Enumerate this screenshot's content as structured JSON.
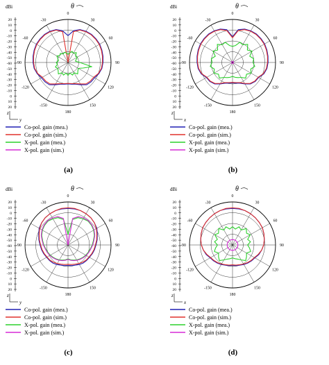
{
  "figure": {
    "theta_symbol": "θ",
    "unit_label": "dBi",
    "radial_ticks": [
      "20",
      "10",
      "0",
      "-10",
      "-20",
      "-30",
      "-40",
      "-50",
      "-60",
      "-50",
      "-40",
      "-30",
      "-20",
      "-10",
      "0",
      "10",
      "20"
    ],
    "angle_labels": [
      {
        "angle": 0,
        "text": "0"
      },
      {
        "angle": 30,
        "text": "30"
      },
      {
        "angle": -30,
        "text": "-30"
      },
      {
        "angle": 60,
        "text": "60"
      },
      {
        "angle": -60,
        "text": "-60"
      },
      {
        "angle": 90,
        "text": "90"
      },
      {
        "angle": -90,
        "text": "-90"
      },
      {
        "angle": 120,
        "text": "120"
      },
      {
        "angle": -120,
        "text": "-120"
      },
      {
        "angle": 150,
        "text": "150"
      },
      {
        "angle": -150,
        "text": "-150"
      },
      {
        "angle": 180,
        "text": "180"
      }
    ],
    "legend": [
      {
        "label": "Co-pol. gain (mea.)",
        "color": "#1f1fb4"
      },
      {
        "label": "Co-pol. gain (sim.)",
        "color": "#e0302b"
      },
      {
        "label": "X-pol. gain (mea.)",
        "color": "#2cd12c"
      },
      {
        "label": "X-pol. gain (sim.)",
        "color": "#d62ad6"
      }
    ]
  },
  "chart_data": [
    {
      "type": "line",
      "subtype": "polar",
      "caption": "(a)",
      "axis_horizontal": "y",
      "axis_vertical": "z",
      "rlim": [
        -60,
        20
      ],
      "theta_deg": [
        0,
        10,
        20,
        30,
        40,
        50,
        60,
        70,
        80,
        90,
        100,
        110,
        120,
        130,
        140,
        150,
        160,
        170,
        180,
        190,
        200,
        210,
        220,
        230,
        240,
        250,
        260,
        270,
        280,
        290,
        300,
        310,
        320,
        330,
        340,
        350
      ],
      "series": [
        {
          "name": "Co-pol. gain (mea.)",
          "color": "#1f1fb4",
          "values": [
            -10,
            0,
            5,
            7,
            8,
            8,
            8,
            7,
            6,
            5,
            4,
            1,
            -3,
            -4,
            -6,
            -12,
            -17,
            -19,
            -20,
            -19,
            -17,
            -12,
            -6,
            -4,
            -3,
            1,
            4,
            5,
            6,
            7,
            8,
            8,
            8,
            7,
            5,
            0
          ]
        },
        {
          "name": "Co-pol. gain (sim.)",
          "color": "#e0302b",
          "values": [
            -60,
            -2,
            4,
            6,
            7,
            7,
            7,
            6,
            5,
            4,
            3,
            0,
            -5,
            -6,
            -8,
            -14,
            -18,
            -20,
            -21,
            -20,
            -18,
            -14,
            -8,
            -6,
            -5,
            0,
            3,
            4,
            5,
            6,
            7,
            7,
            7,
            6,
            4,
            -2
          ]
        },
        {
          "name": "X-pol. gain (mea.)",
          "color": "#2cd12c",
          "values": [
            -45,
            -42,
            -38,
            -40,
            -36,
            -42,
            -40,
            -44,
            -46,
            -38,
            -15,
            -30,
            -38,
            -36,
            -32,
            -38,
            -35,
            -40,
            -36,
            -40,
            -35,
            -38,
            -32,
            -36,
            -38,
            -35,
            -40,
            -38,
            -42,
            -40,
            -36,
            -40,
            -38,
            -42,
            -40,
            -42
          ]
        },
        {
          "name": "X-pol. gain (sim.)",
          "color": "#d62ad6",
          "values": [
            -60,
            -60,
            -60,
            -60,
            -60,
            -60,
            -60,
            -60,
            -60,
            -60,
            -60,
            -60,
            -60,
            -60,
            -60,
            -60,
            -60,
            -60,
            -60,
            -60,
            -60,
            -60,
            -60,
            -60,
            -60,
            -60,
            -60,
            -60,
            -60,
            -60,
            -60,
            -60,
            -60,
            -60,
            -60,
            -60
          ]
        }
      ]
    },
    {
      "type": "line",
      "subtype": "polar",
      "caption": "(b)",
      "axis_horizontal": "x",
      "axis_vertical": "z",
      "rlim": [
        -60,
        20
      ],
      "theta_deg": [
        0,
        10,
        20,
        30,
        40,
        50,
        60,
        70,
        80,
        90,
        100,
        110,
        120,
        130,
        140,
        150,
        160,
        170,
        180,
        190,
        200,
        210,
        220,
        230,
        240,
        250,
        260,
        270,
        280,
        290,
        300,
        310,
        320,
        330,
        340,
        350
      ],
      "series": [
        {
          "name": "Co-pol. gain (mea.)",
          "color": "#1f1fb4",
          "values": [
            -12,
            2,
            6,
            8,
            9,
            9,
            9,
            8,
            7,
            6,
            5,
            2,
            -4,
            -5,
            -8,
            -14,
            -19,
            -21,
            -22,
            -21,
            -19,
            -14,
            -8,
            -5,
            -4,
            2,
            5,
            6,
            7,
            8,
            9,
            9,
            9,
            8,
            6,
            2
          ]
        },
        {
          "name": "Co-pol. gain (sim.)",
          "color": "#e0302b",
          "values": [
            -14,
            0,
            5,
            7,
            8,
            8,
            8,
            7,
            6,
            5,
            4,
            1,
            -5,
            -6,
            -9,
            -15,
            -20,
            -22,
            -23,
            -22,
            -20,
            -15,
            -9,
            -6,
            -5,
            1,
            4,
            5,
            6,
            7,
            8,
            8,
            8,
            7,
            5,
            0
          ]
        },
        {
          "name": "X-pol. gain (mea.)",
          "color": "#2cd12c",
          "values": [
            -30,
            -28,
            -20,
            -22,
            -16,
            -24,
            -18,
            -26,
            -20,
            -22,
            -18,
            -24,
            -20,
            -26,
            -22,
            -28,
            -30,
            -32,
            -34,
            -32,
            -30,
            -28,
            -22,
            -26,
            -20,
            -24,
            -18,
            -22,
            -20,
            -26,
            -18,
            -24,
            -16,
            -22,
            -20,
            -28
          ]
        },
        {
          "name": "X-pol. gain (sim.)",
          "color": "#d62ad6",
          "values": [
            -58,
            -58,
            -58,
            -58,
            -58,
            -58,
            -58,
            -58,
            -58,
            -58,
            -58,
            -58,
            -58,
            -58,
            -58,
            -58,
            -58,
            -58,
            -58,
            -58,
            -58,
            -58,
            -58,
            -58,
            -58,
            -58,
            -58,
            -58,
            -58,
            -58,
            -58,
            -58,
            -58,
            -58,
            -58,
            -58
          ]
        }
      ]
    },
    {
      "type": "line",
      "subtype": "polar",
      "caption": "(c)",
      "axis_horizontal": "y",
      "axis_vertical": "z",
      "rlim": [
        -60,
        20
      ],
      "theta_deg": [
        0,
        10,
        20,
        30,
        40,
        50,
        60,
        70,
        80,
        90,
        100,
        110,
        120,
        130,
        140,
        150,
        160,
        170,
        180,
        190,
        200,
        210,
        220,
        230,
        240,
        250,
        260,
        270,
        280,
        290,
        300,
        310,
        320,
        330,
        340,
        350
      ],
      "series": [
        {
          "name": "Co-pol. gain (mea.)",
          "color": "#1f1fb4",
          "values": [
            8,
            8,
            8,
            7,
            6,
            4,
            2,
            -2,
            -5,
            -8,
            -10,
            -12,
            -14,
            -15,
            -16,
            -18,
            -20,
            -21,
            -22,
            -21,
            -20,
            -18,
            -16,
            -15,
            -14,
            -12,
            -10,
            -8,
            -5,
            -2,
            2,
            4,
            6,
            7,
            8,
            8
          ]
        },
        {
          "name": "Co-pol. gain (sim.)",
          "color": "#e0302b",
          "values": [
            9,
            9,
            8,
            7,
            6,
            4,
            1,
            -3,
            -6,
            -9,
            -11,
            -13,
            -15,
            -16,
            -18,
            -20,
            -22,
            -23,
            -24,
            -23,
            -22,
            -20,
            -18,
            -16,
            -15,
            -13,
            -11,
            -9,
            -6,
            -3,
            1,
            4,
            6,
            7,
            8,
            9
          ]
        },
        {
          "name": "X-pol. gain (mea.)",
          "color": "#2cd12c",
          "values": [
            -40,
            -12,
            -6,
            -4,
            -2,
            -3,
            -5,
            -8,
            -12,
            -15,
            -18,
            -20,
            -22,
            -24,
            -26,
            -28,
            -30,
            -32,
            -34,
            -32,
            -30,
            -28,
            -26,
            -24,
            -22,
            -20,
            -18,
            -15,
            -12,
            -8,
            -5,
            -3,
            -2,
            -4,
            -6,
            -12
          ]
        },
        {
          "name": "X-pol. gain (sim.)",
          "color": "#d62ad6",
          "values": [
            -60,
            -10,
            -4,
            -2,
            -1,
            -2,
            -4,
            -7,
            -11,
            -14,
            -17,
            -19,
            -21,
            -23,
            -25,
            -27,
            -29,
            -31,
            -33,
            -31,
            -29,
            -27,
            -25,
            -23,
            -21,
            -19,
            -17,
            -14,
            -11,
            -7,
            -4,
            -2,
            -1,
            -2,
            -4,
            -10
          ]
        }
      ]
    },
    {
      "type": "line",
      "subtype": "polar",
      "caption": "(d)",
      "axis_horizontal": "x",
      "axis_vertical": "z",
      "rlim": [
        -60,
        20
      ],
      "theta_deg": [
        0,
        10,
        20,
        30,
        40,
        50,
        60,
        70,
        80,
        90,
        100,
        110,
        120,
        130,
        140,
        150,
        160,
        170,
        180,
        190,
        200,
        210,
        220,
        230,
        240,
        250,
        260,
        270,
        280,
        290,
        300,
        310,
        320,
        330,
        340,
        350
      ],
      "series": [
        {
          "name": "Co-pol. gain (mea.)",
          "color": "#1f1fb4",
          "values": [
            8,
            8,
            8,
            7,
            6,
            5,
            4,
            2,
            0,
            -2,
            -5,
            -8,
            -12,
            -14,
            -16,
            -18,
            -20,
            -21,
            -22,
            -21,
            -20,
            -18,
            -16,
            -14,
            -12,
            -8,
            -5,
            -2,
            0,
            2,
            4,
            5,
            6,
            7,
            8,
            8
          ]
        },
        {
          "name": "Co-pol. gain (sim.)",
          "color": "#e0302b",
          "values": [
            9,
            9,
            8,
            7,
            6,
            5,
            4,
            2,
            0,
            -2,
            -5,
            -9,
            -13,
            -15,
            -17,
            -19,
            -21,
            -22,
            -23,
            -22,
            -21,
            -19,
            -17,
            -15,
            -13,
            -9,
            -5,
            -2,
            0,
            2,
            4,
            5,
            6,
            7,
            8,
            9
          ]
        },
        {
          "name": "X-pol. gain (mea.)",
          "color": "#2cd12c",
          "values": [
            -26,
            -30,
            -24,
            -28,
            -20,
            -26,
            -22,
            -30,
            -26,
            -32,
            -28,
            -24,
            -30,
            -26,
            -22,
            -28,
            -32,
            -34,
            -36,
            -34,
            -32,
            -28,
            -22,
            -26,
            -30,
            -24,
            -28,
            -32,
            -26,
            -30,
            -22,
            -26,
            -20,
            -28,
            -24,
            -30
          ]
        },
        {
          "name": "X-pol. gain (sim.)",
          "color": "#d62ad6",
          "values": [
            -50,
            -50,
            -50,
            -50,
            -50,
            -50,
            -50,
            -50,
            -50,
            -50,
            -50,
            -50,
            -50,
            -50,
            -50,
            -50,
            -50,
            -50,
            -50,
            -50,
            -50,
            -50,
            -50,
            -50,
            -50,
            -50,
            -50,
            -50,
            -50,
            -50,
            -50,
            -50,
            -50,
            -50,
            -50,
            -50
          ]
        }
      ]
    }
  ]
}
